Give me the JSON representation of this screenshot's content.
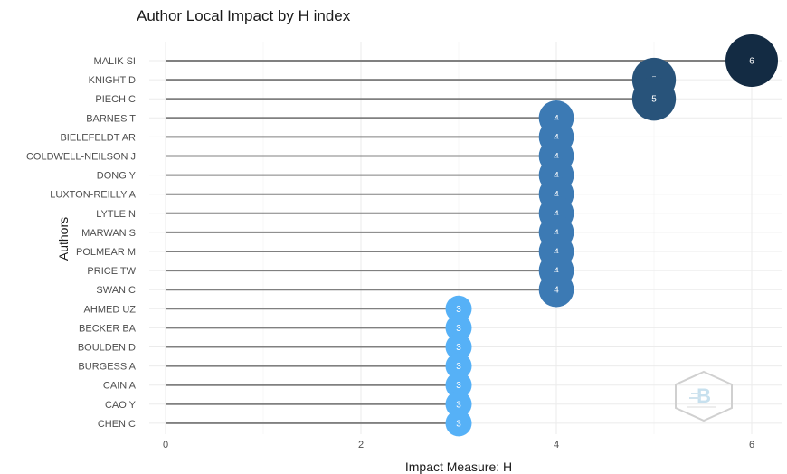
{
  "chart_data": {
    "type": "lollipop",
    "title": "Author Local Impact by H index",
    "xlabel": "Impact Measure: H",
    "ylabel": "Authors",
    "xlim": [
      0,
      6.3
    ],
    "xticks": [
      0,
      2,
      4,
      6
    ],
    "grid": true,
    "categories": [
      "MALIK SI",
      "KNIGHT D",
      "PIECH C",
      "BARNES T",
      "BIELEFELDT AR",
      "COLDWELL-NEILSON J",
      "DONG Y",
      "LUXTON-REILLY A",
      "LYTLE N",
      "MARWAN S",
      "POLMEAR M",
      "PRICE TW",
      "SWAN C",
      "AHMED UZ",
      "BECKER BA",
      "BOULDEN D",
      "BURGESS A",
      "CAIN A",
      "CAO Y",
      "CHEN C"
    ],
    "values": [
      6,
      5,
      5,
      4,
      4,
      4,
      4,
      4,
      4,
      4,
      4,
      4,
      4,
      3,
      3,
      3,
      3,
      3,
      3,
      3
    ],
    "colors": {
      "6": "#132b43",
      "5": "#28537a",
      "4": "#3c7ab4",
      "3": "#56b1f7"
    },
    "stem_color": "#808080"
  }
}
